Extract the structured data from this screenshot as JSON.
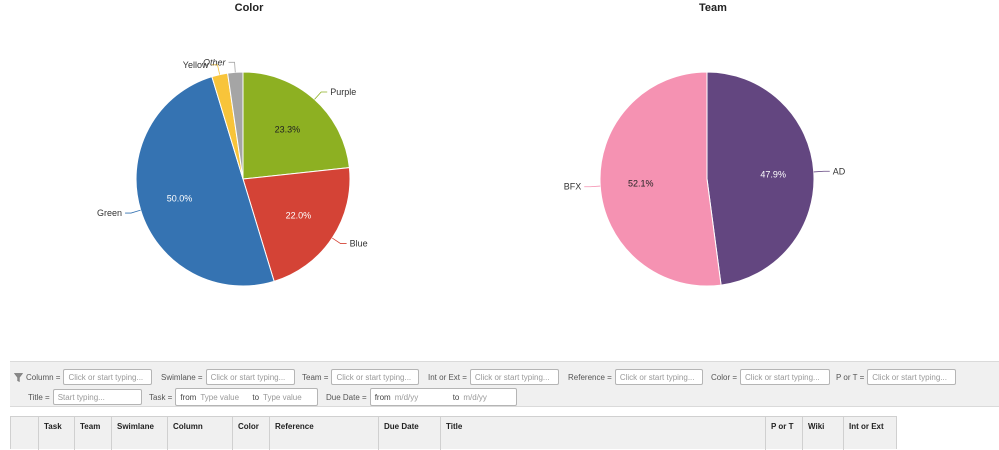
{
  "chart_data": [
    {
      "type": "pie",
      "title": "Color",
      "slices": [
        {
          "label": "Purple",
          "value": 23.3,
          "display": "23.3%",
          "color": "#8db022"
        },
        {
          "label": "Blue",
          "value": 22.0,
          "display": "22.0%",
          "color": "#d44336"
        },
        {
          "label": "Green",
          "value": 50.0,
          "display": "50.0%",
          "color": "#3573b2"
        },
        {
          "label": "Yellow",
          "value": 2.4,
          "display": "",
          "color": "#f8c43a"
        },
        {
          "label": "Other",
          "value": 2.3,
          "display": "",
          "color": "#a5a5a5"
        }
      ]
    },
    {
      "type": "pie",
      "title": "Team",
      "slices": [
        {
          "label": "AD",
          "value": 47.9,
          "display": "47.9%",
          "color": "#634680"
        },
        {
          "label": "BFX",
          "value": 52.1,
          "display": "52.1%",
          "color": "#f592b2"
        }
      ]
    }
  ],
  "filters": {
    "icon": "filter-icon",
    "column": {
      "label": "Column =",
      "placeholder": "Click or start typing..."
    },
    "swimlane": {
      "label": "Swimlane =",
      "placeholder": "Click or start typing..."
    },
    "team": {
      "label": "Team =",
      "placeholder": "Click or start typing..."
    },
    "int_or_ext": {
      "label": "Int or Ext =",
      "placeholder": "Click or start typing..."
    },
    "reference": {
      "label": "Reference =",
      "placeholder": "Click or start typing..."
    },
    "color": {
      "label": "Color =",
      "placeholder": "Click or start typing..."
    },
    "p_or_t": {
      "label": "P or T =",
      "placeholder": "Click or start typing..."
    },
    "title": {
      "label": "Title =",
      "placeholder": "Start typing..."
    },
    "task": {
      "label": "Task =",
      "from": "from",
      "from_placeholder": "Type value",
      "to": "to",
      "to_placeholder": "Type value"
    },
    "due_date": {
      "label": "Due Date =",
      "from": "from",
      "from_placeholder": "m/d/yy",
      "to": "to",
      "to_placeholder": "m/d/yy"
    }
  },
  "table": {
    "headers": [
      "Task",
      "Team",
      "Swimlane",
      "Column",
      "Color",
      "Reference",
      "Due Date",
      "Title",
      "P or T",
      "Wiki",
      "Int or Ext"
    ]
  }
}
